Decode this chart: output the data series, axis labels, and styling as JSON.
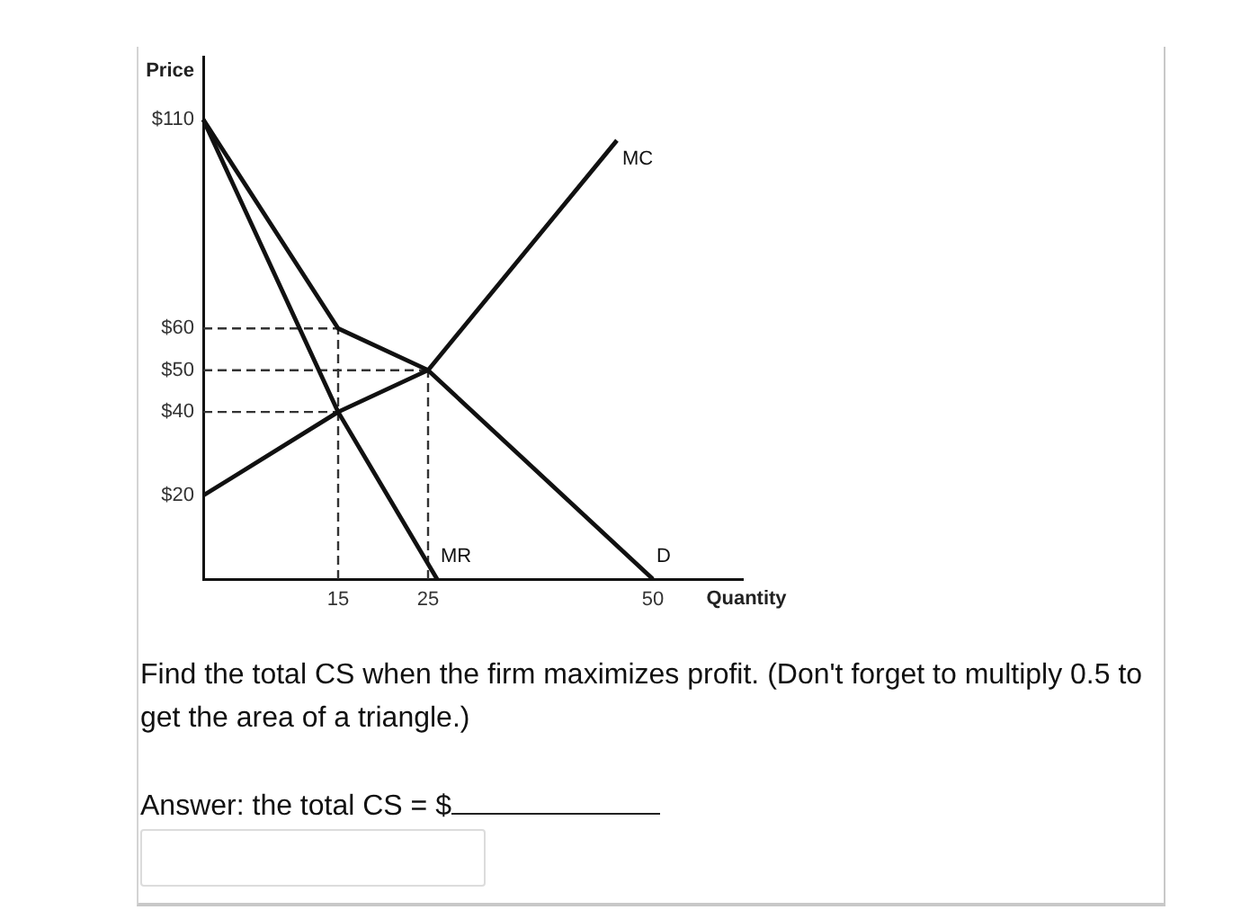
{
  "chart_data": {
    "type": "line",
    "xlabel": "Quantity",
    "ylabel": "Price",
    "xlim": [
      0,
      60
    ],
    "xticks": [
      15,
      25,
      50
    ],
    "ylim": [
      0,
      125
    ],
    "yticks": [
      {
        "value": 20,
        "label": "$20"
      },
      {
        "value": 40,
        "label": "$40"
      },
      {
        "value": 50,
        "label": "$50"
      },
      {
        "value": 60,
        "label": "$60"
      },
      {
        "value": 110,
        "label": "$110"
      }
    ],
    "marker": "none",
    "line_style": "solid",
    "series": [
      {
        "name": "D",
        "color": "#111111",
        "x": [
          0,
          15,
          25,
          50
        ],
        "values": [
          110,
          60,
          50,
          0
        ]
      },
      {
        "name": "MR",
        "color": "#111111",
        "x": [
          0,
          15,
          26
        ],
        "values": [
          110,
          40,
          0
        ]
      },
      {
        "name": "MC",
        "color": "#111111",
        "x": [
          0,
          15,
          25,
          46
        ],
        "values": [
          20,
          40,
          50,
          105
        ]
      },
      {
        "color": "#333333",
        "line_style": "dashed",
        "x": [
          0,
          15
        ],
        "values": [
          60,
          60
        ]
      },
      {
        "color": "#333333",
        "line_style": "dashed",
        "x": [
          0,
          25
        ],
        "values": [
          50,
          50
        ]
      },
      {
        "color": "#333333",
        "line_style": "dashed",
        "x": [
          0,
          15
        ],
        "values": [
          40,
          40
        ]
      },
      {
        "color": "#333333",
        "line_style": "dashed",
        "x": [
          15,
          15
        ],
        "values": [
          0,
          60
        ]
      },
      {
        "color": "#333333",
        "line_style": "dashed",
        "x": [
          25,
          25
        ],
        "values": [
          0,
          50
        ]
      }
    ],
    "annotations": [
      "Find the total CS when the firm maximizes profit. (Don't forget to multiply 0.5 to get the area of a triangle.)",
      "Answer: the total CS = $"
    ]
  }
}
